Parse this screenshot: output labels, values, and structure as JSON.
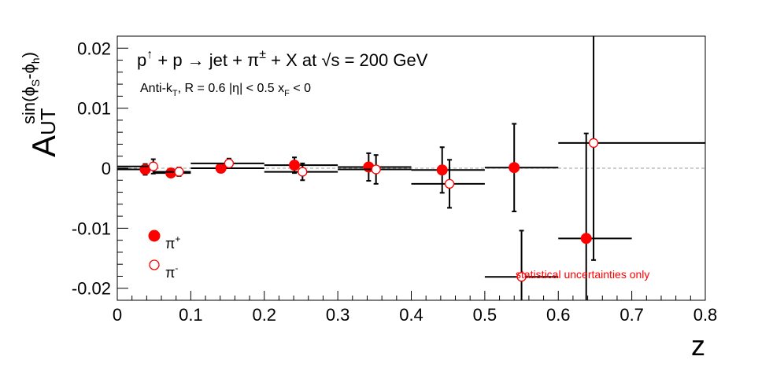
{
  "chart_data": {
    "type": "scatter",
    "title": "p↑ + p → jet + π± + X at √s = 200 GeV",
    "title_parts": {
      "p": "p",
      "up": "↑",
      "rest1": " + p ",
      "arrow": "→",
      "rest2": " jet + π",
      "pm": "±",
      "rest3": " + X at ",
      "sqrt": "√",
      "rest4": "s = 200 GeV"
    },
    "subtitle_parts": {
      "antik": "Anti-k",
      "T": "T",
      "rest": ", R = 0.6   |η| < 0.5   x",
      "F": "F",
      "lt": " < 0"
    },
    "xlabel": "z",
    "ylabel_main": "A",
    "ylabel_sub": "UT",
    "ylabel_sup": "sin(ϕ",
    "ylabel_sup_s": "S",
    "ylabel_sup_mid": "-ϕ",
    "ylabel_sup_h": "h",
    "ylabel_sup_close": ")",
    "xlim": [
      0,
      0.8
    ],
    "ylim": [
      -0.022,
      0.022
    ],
    "x_ticks": [
      "0",
      "0.1",
      "0.2",
      "0.3",
      "0.4",
      "0.5",
      "0.6",
      "0.7",
      "0.8"
    ],
    "x_tick_values": [
      0,
      0.1,
      0.2,
      0.3,
      0.4,
      0.5,
      0.6,
      0.7,
      0.8
    ],
    "y_ticks": [
      "0.02",
      "0.01",
      "0",
      "-0.01",
      "-0.02"
    ],
    "y_tick_values": [
      0.02,
      0.01,
      0,
      -0.01,
      -0.02
    ],
    "zero_line": "dashed gray",
    "legend_position": "bottom-left",
    "note": "statistical uncertainties only",
    "series": [
      {
        "name": "π⁺",
        "marker": "filled-circle",
        "color": "#ff0000",
        "points": [
          {
            "x": 0.038,
            "y": -0.0002,
            "xlo": 0.0,
            "xhi": 0.05,
            "err": 0.0009
          },
          {
            "x": 0.073,
            "y": -0.0008,
            "xlo": 0.05,
            "xhi": 0.1,
            "err": 0.0006
          },
          {
            "x": 0.141,
            "y": 0.0,
            "xlo": 0.1,
            "xhi": 0.2,
            "err": 0.0007
          },
          {
            "x": 0.241,
            "y": 0.0005,
            "xlo": 0.2,
            "xhi": 0.3,
            "err": 0.0013
          },
          {
            "x": 0.342,
            "y": 0.0002,
            "xlo": 0.3,
            "xhi": 0.4,
            "err": 0.0023
          },
          {
            "x": 0.442,
            "y": -0.0003,
            "xlo": 0.4,
            "xhi": 0.5,
            "err": 0.0038
          },
          {
            "x": 0.54,
            "y": 0.0001,
            "xlo": 0.5,
            "xhi": 0.6,
            "err": 0.0073
          },
          {
            "x": 0.638,
            "y": -0.0117,
            "xlo": 0.6,
            "xhi": 0.7,
            "err": 0.0175
          }
        ]
      },
      {
        "name": "π⁻",
        "marker": "open-circle",
        "color": "#ff0000",
        "points": [
          {
            "x": 0.049,
            "y": 0.0003,
            "xlo": 0.0,
            "xhi": 0.05,
            "err": 0.0012
          },
          {
            "x": 0.084,
            "y": -0.0006,
            "xlo": 0.05,
            "xhi": 0.1,
            "err": 0.0007
          },
          {
            "x": 0.152,
            "y": 0.0008,
            "xlo": 0.1,
            "xhi": 0.2,
            "err": 0.0008
          },
          {
            "x": 0.252,
            "y": -0.0006,
            "xlo": 0.2,
            "xhi": 0.3,
            "err": 0.0014
          },
          {
            "x": 0.352,
            "y": -0.0002,
            "xlo": 0.3,
            "xhi": 0.4,
            "err": 0.0024
          },
          {
            "x": 0.452,
            "y": -0.0026,
            "xlo": 0.4,
            "xhi": 0.5,
            "err": 0.004
          },
          {
            "x": 0.55,
            "y": -0.0181,
            "xlo": 0.5,
            "xhi": 0.6,
            "err": 0.0077
          },
          {
            "x": 0.648,
            "y": 0.0042,
            "xlo": 0.6,
            "xhi": 0.8,
            "err": 0.0195
          }
        ]
      }
    ]
  },
  "legend": {
    "pos_label": "π",
    "pos_sup": "+",
    "neg_label": "π",
    "neg_sup": "-"
  }
}
